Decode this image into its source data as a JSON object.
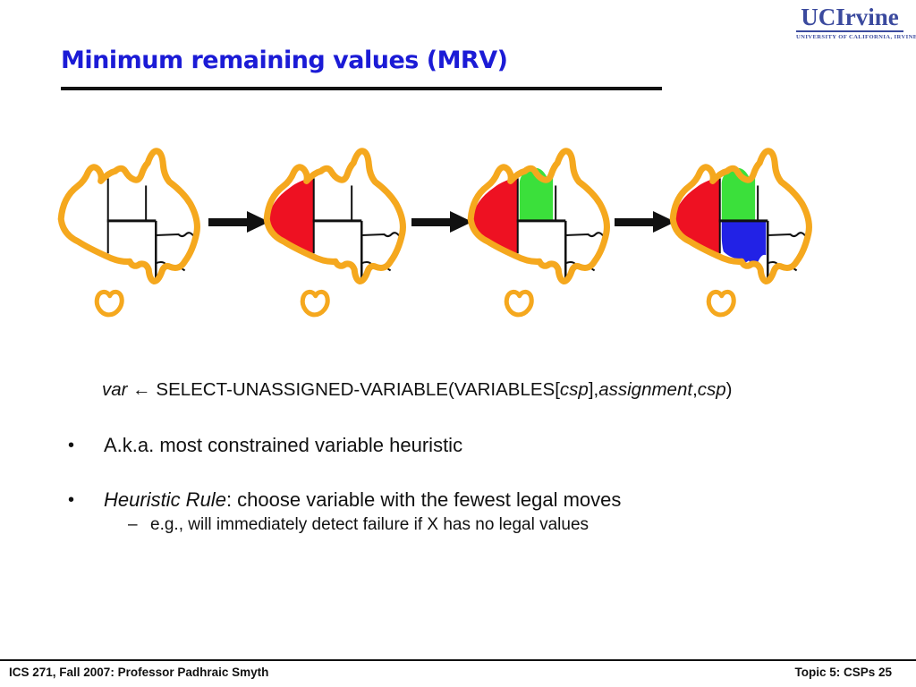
{
  "slide": {
    "title": "Minimum remaining values (MRV)",
    "footer_left": "ICS 271, Fall 2007: Professor Padhraic Smyth",
    "footer_right": "Topic 5: CSPs 25"
  },
  "logo": {
    "word": "UCIrvine",
    "subtitle": "UNIVERSITY OF CALIFORNIA, IRVINE",
    "color": "#3b4a9e"
  },
  "code_line": {
    "var": "var",
    "arrow": " ← ",
    "func": "SELECT-UNASSIGNED-VARIABLE(VARIABLES[",
    "arg1": "csp",
    "sep1": "],",
    "arg2": "assignment",
    "sep2": ",",
    "arg3": "csp",
    "close": ")"
  },
  "bullets": {
    "bullet_char": "•",
    "dash_char": "–",
    "b1": "A.k.a. most constrained variable heuristic",
    "b2_italic": "Heuristic Rule",
    "b2_rest": ": choose variable with the fewest legal moves",
    "b2_sub": "e.g., will immediately detect failure if X has no legal values"
  },
  "diagram": {
    "description": "Four hand-drawn Australia constraint-graph maps showing MRV coloring steps, joined by arrows",
    "colors": {
      "outline": "#f5a81e",
      "border": "#111111",
      "red": "#ee1122",
      "green": "#3be03b",
      "blue": "#2222e6"
    },
    "maps": [
      {
        "label": "australia-map-step-0",
        "wa": null,
        "nt": null,
        "sa": null
      },
      {
        "label": "australia-map-step-1",
        "wa": "red",
        "nt": null,
        "sa": null
      },
      {
        "label": "australia-map-step-2",
        "wa": "red",
        "nt": "green",
        "sa": null
      },
      {
        "label": "australia-map-step-3",
        "wa": "red",
        "nt": "green",
        "sa": "blue"
      }
    ]
  },
  "title_color": "#1b1bd6"
}
